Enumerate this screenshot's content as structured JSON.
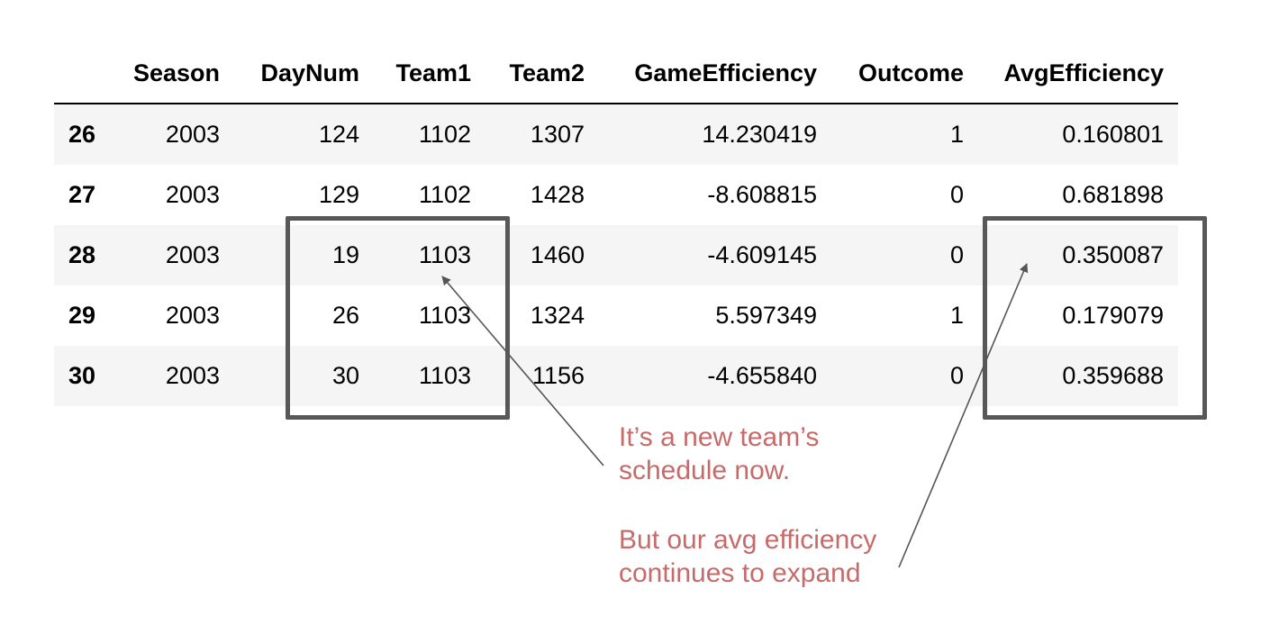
{
  "table": {
    "columns": [
      "",
      "Season",
      "DayNum",
      "Team1",
      "Team2",
      "GameEfficiency",
      "Outcome",
      "AvgEfficiency"
    ],
    "rows": [
      {
        "index": "26",
        "Season": "2003",
        "DayNum": "124",
        "Team1": "1102",
        "Team2": "1307",
        "GameEfficiency": "14.230419",
        "Outcome": "1",
        "AvgEfficiency": "0.160801"
      },
      {
        "index": "27",
        "Season": "2003",
        "DayNum": "129",
        "Team1": "1102",
        "Team2": "1428",
        "GameEfficiency": "-8.608815",
        "Outcome": "0",
        "AvgEfficiency": "0.681898"
      },
      {
        "index": "28",
        "Season": "2003",
        "DayNum": "19",
        "Team1": "1103",
        "Team2": "1460",
        "GameEfficiency": "-4.609145",
        "Outcome": "0",
        "AvgEfficiency": "0.350087"
      },
      {
        "index": "29",
        "Season": "2003",
        "DayNum": "26",
        "Team1": "1103",
        "Team2": "1324",
        "GameEfficiency": "5.597349",
        "Outcome": "1",
        "AvgEfficiency": "0.179079"
      },
      {
        "index": "30",
        "Season": "2003",
        "DayNum": "30",
        "Team1": "1103",
        "Team2": "1156",
        "GameEfficiency": "-4.655840",
        "Outcome": "0",
        "AvgEfficiency": "0.359688"
      }
    ]
  },
  "annotations": {
    "new_team_line1": "It’s a new team’s",
    "new_team_line2": "schedule now.",
    "avg_line1": "But our avg efficiency",
    "avg_line2": "continues to expand"
  },
  "colors": {
    "annotation_text": "#c76a6a",
    "box_border": "#585858",
    "arrow": "#555555",
    "stripe": "#f5f5f5"
  }
}
